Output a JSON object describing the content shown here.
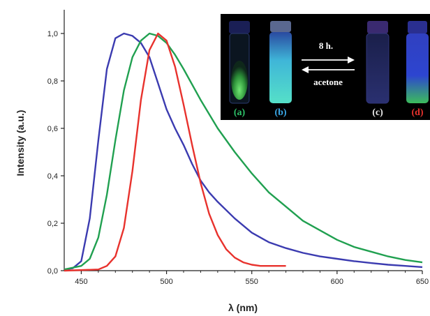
{
  "chart_data": {
    "type": "line",
    "xlabel": "λ (nm)",
    "ylabel": "Intensity (a.u.)",
    "xlim": [
      440,
      650
    ],
    "ylim": [
      0.0,
      1.1
    ],
    "x_ticks": [
      "450",
      "500",
      "550",
      "600",
      "650"
    ],
    "y_ticks": [
      "0,0",
      "0,2",
      "0,4",
      "0,6",
      "0,8",
      "1,0"
    ],
    "grid": false,
    "legend": "none",
    "series": [
      {
        "color": "#3b3bb0",
        "x": [
          440,
          445,
          450,
          455,
          460,
          465,
          470,
          475,
          480,
          485,
          490,
          495,
          500,
          505,
          510,
          515,
          520,
          525,
          530,
          540,
          550,
          560,
          570,
          580,
          590,
          600,
          610,
          620,
          630,
          640,
          650
        ],
        "y": [
          0.005,
          0.01,
          0.04,
          0.22,
          0.55,
          0.85,
          0.98,
          1.0,
          0.99,
          0.96,
          0.9,
          0.79,
          0.68,
          0.6,
          0.53,
          0.45,
          0.38,
          0.33,
          0.29,
          0.22,
          0.16,
          0.12,
          0.095,
          0.075,
          0.06,
          0.05,
          0.04,
          0.032,
          0.025,
          0.02,
          0.015
        ]
      },
      {
        "color": "#20a050",
        "x": [
          440,
          450,
          455,
          460,
          465,
          470,
          475,
          480,
          485,
          490,
          495,
          500,
          505,
          510,
          520,
          530,
          540,
          550,
          560,
          570,
          580,
          590,
          600,
          610,
          620,
          630,
          640,
          650
        ],
        "y": [
          0.005,
          0.02,
          0.05,
          0.14,
          0.32,
          0.55,
          0.76,
          0.9,
          0.97,
          1.0,
          0.99,
          0.96,
          0.91,
          0.85,
          0.72,
          0.6,
          0.5,
          0.41,
          0.33,
          0.27,
          0.21,
          0.17,
          0.13,
          0.1,
          0.08,
          0.06,
          0.045,
          0.035
        ]
      },
      {
        "color": "#e8322d",
        "x": [
          440,
          460,
          465,
          470,
          475,
          480,
          485,
          490,
          495,
          500,
          505,
          510,
          515,
          520,
          525,
          530,
          535,
          540,
          545,
          550,
          555,
          560,
          565,
          570
        ],
        "y": [
          0.0,
          0.005,
          0.02,
          0.06,
          0.18,
          0.42,
          0.72,
          0.93,
          1.0,
          0.97,
          0.86,
          0.7,
          0.53,
          0.37,
          0.24,
          0.15,
          0.09,
          0.055,
          0.035,
          0.025,
          0.02,
          0.02,
          0.02,
          0.02
        ]
      }
    ]
  },
  "inset": {
    "arrow_top_label": "8 h.",
    "arrow_bottom_label": "acetone",
    "vials": [
      {
        "label": "(a)",
        "label_color": "#2ec46a"
      },
      {
        "label": "(b)",
        "label_color": "#3aa8e8"
      },
      {
        "label": "(c)",
        "label_color": "#e8e8e8"
      },
      {
        "label": "(d)",
        "label_color": "#e8322d"
      }
    ]
  }
}
